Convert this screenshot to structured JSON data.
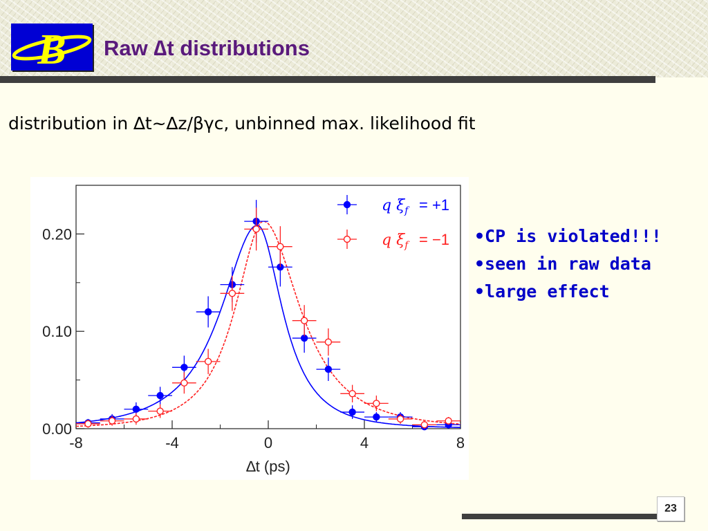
{
  "slide": {
    "title": "Raw ∆t distributions",
    "subtitle": "distribution in ∆t~∆z/βγc, unbinned max. likelihood fit",
    "bullets": [
      "•CP is violated!!!",
      "•seen in raw data",
      "•large effect"
    ],
    "page_number": "23",
    "logo_letter": "B"
  },
  "colors": {
    "title": "#5a1a7c",
    "bullets": "#0000c8",
    "series_plus": "#0000ff",
    "series_minus": "#ff2020",
    "rules": "#3f3f3f"
  },
  "chart_data": {
    "type": "scatter",
    "title": "",
    "xlabel": "∆t (ps)",
    "ylabel": "",
    "xlim": [
      -8,
      8
    ],
    "ylim": [
      0,
      0.25
    ],
    "xticks": [
      "-8",
      "-4",
      "0",
      "4",
      "8"
    ],
    "xtick_values": [
      -8,
      -4,
      0,
      4,
      8
    ],
    "yticks": [
      "0.00",
      "0.10",
      "0.20"
    ],
    "ytick_values": [
      0,
      0.1,
      0.2
    ],
    "grid": false,
    "legend": "top-right",
    "series": [
      {
        "name": "qξ_f = +1",
        "legend_label": "= +1",
        "marker": "filled-circle",
        "color": "#0000ff",
        "line_style": "solid",
        "x": [
          -7.5,
          -6.5,
          -5.5,
          -4.5,
          -3.5,
          -2.5,
          -1.5,
          -0.5,
          0.5,
          1.5,
          2.5,
          3.5,
          4.5,
          5.5,
          6.5,
          7.5
        ],
        "y": [
          0.006,
          0.01,
          0.02,
          0.034,
          0.063,
          0.12,
          0.148,
          0.213,
          0.166,
          0.093,
          0.061,
          0.017,
          0.012,
          0.012,
          0.002,
          0.004
        ],
        "yerr": [
          0.004,
          0.005,
          0.007,
          0.009,
          0.012,
          0.016,
          0.018,
          0.022,
          0.02,
          0.015,
          0.012,
          0.007,
          0.005,
          0.005,
          0.003,
          0.004
        ]
      },
      {
        "name": "qξ_f = −1",
        "legend_label": "= −1",
        "marker": "open-circle",
        "color": "#ff2020",
        "line_style": "dashed",
        "x": [
          -7.5,
          -6.5,
          -5.5,
          -4.5,
          -3.5,
          -2.5,
          -1.5,
          -0.5,
          0.5,
          1.5,
          2.5,
          3.5,
          4.5,
          5.5,
          6.5,
          7.5
        ],
        "y": [
          0.005,
          0.008,
          0.01,
          0.018,
          0.047,
          0.069,
          0.139,
          0.205,
          0.187,
          0.111,
          0.089,
          0.036,
          0.026,
          0.01,
          0.004,
          0.008
        ],
        "yerr": [
          0.004,
          0.005,
          0.006,
          0.007,
          0.011,
          0.013,
          0.018,
          0.022,
          0.021,
          0.016,
          0.014,
          0.009,
          0.008,
          0.005,
          0.004,
          0.004
        ]
      }
    ],
    "fits": [
      {
        "series": "qξ_f = +1",
        "color": "#0000ff",
        "style": "solid",
        "peak_x": -0.45,
        "peak_y": 0.209,
        "left_width": 1.75,
        "right_width": 1.2
      },
      {
        "series": "qξ_f = −1",
        "color": "#ff2020",
        "style": "dashed",
        "peak_x": -0.2,
        "peak_y": 0.213,
        "left_width": 1.35,
        "right_width": 1.75
      }
    ]
  }
}
